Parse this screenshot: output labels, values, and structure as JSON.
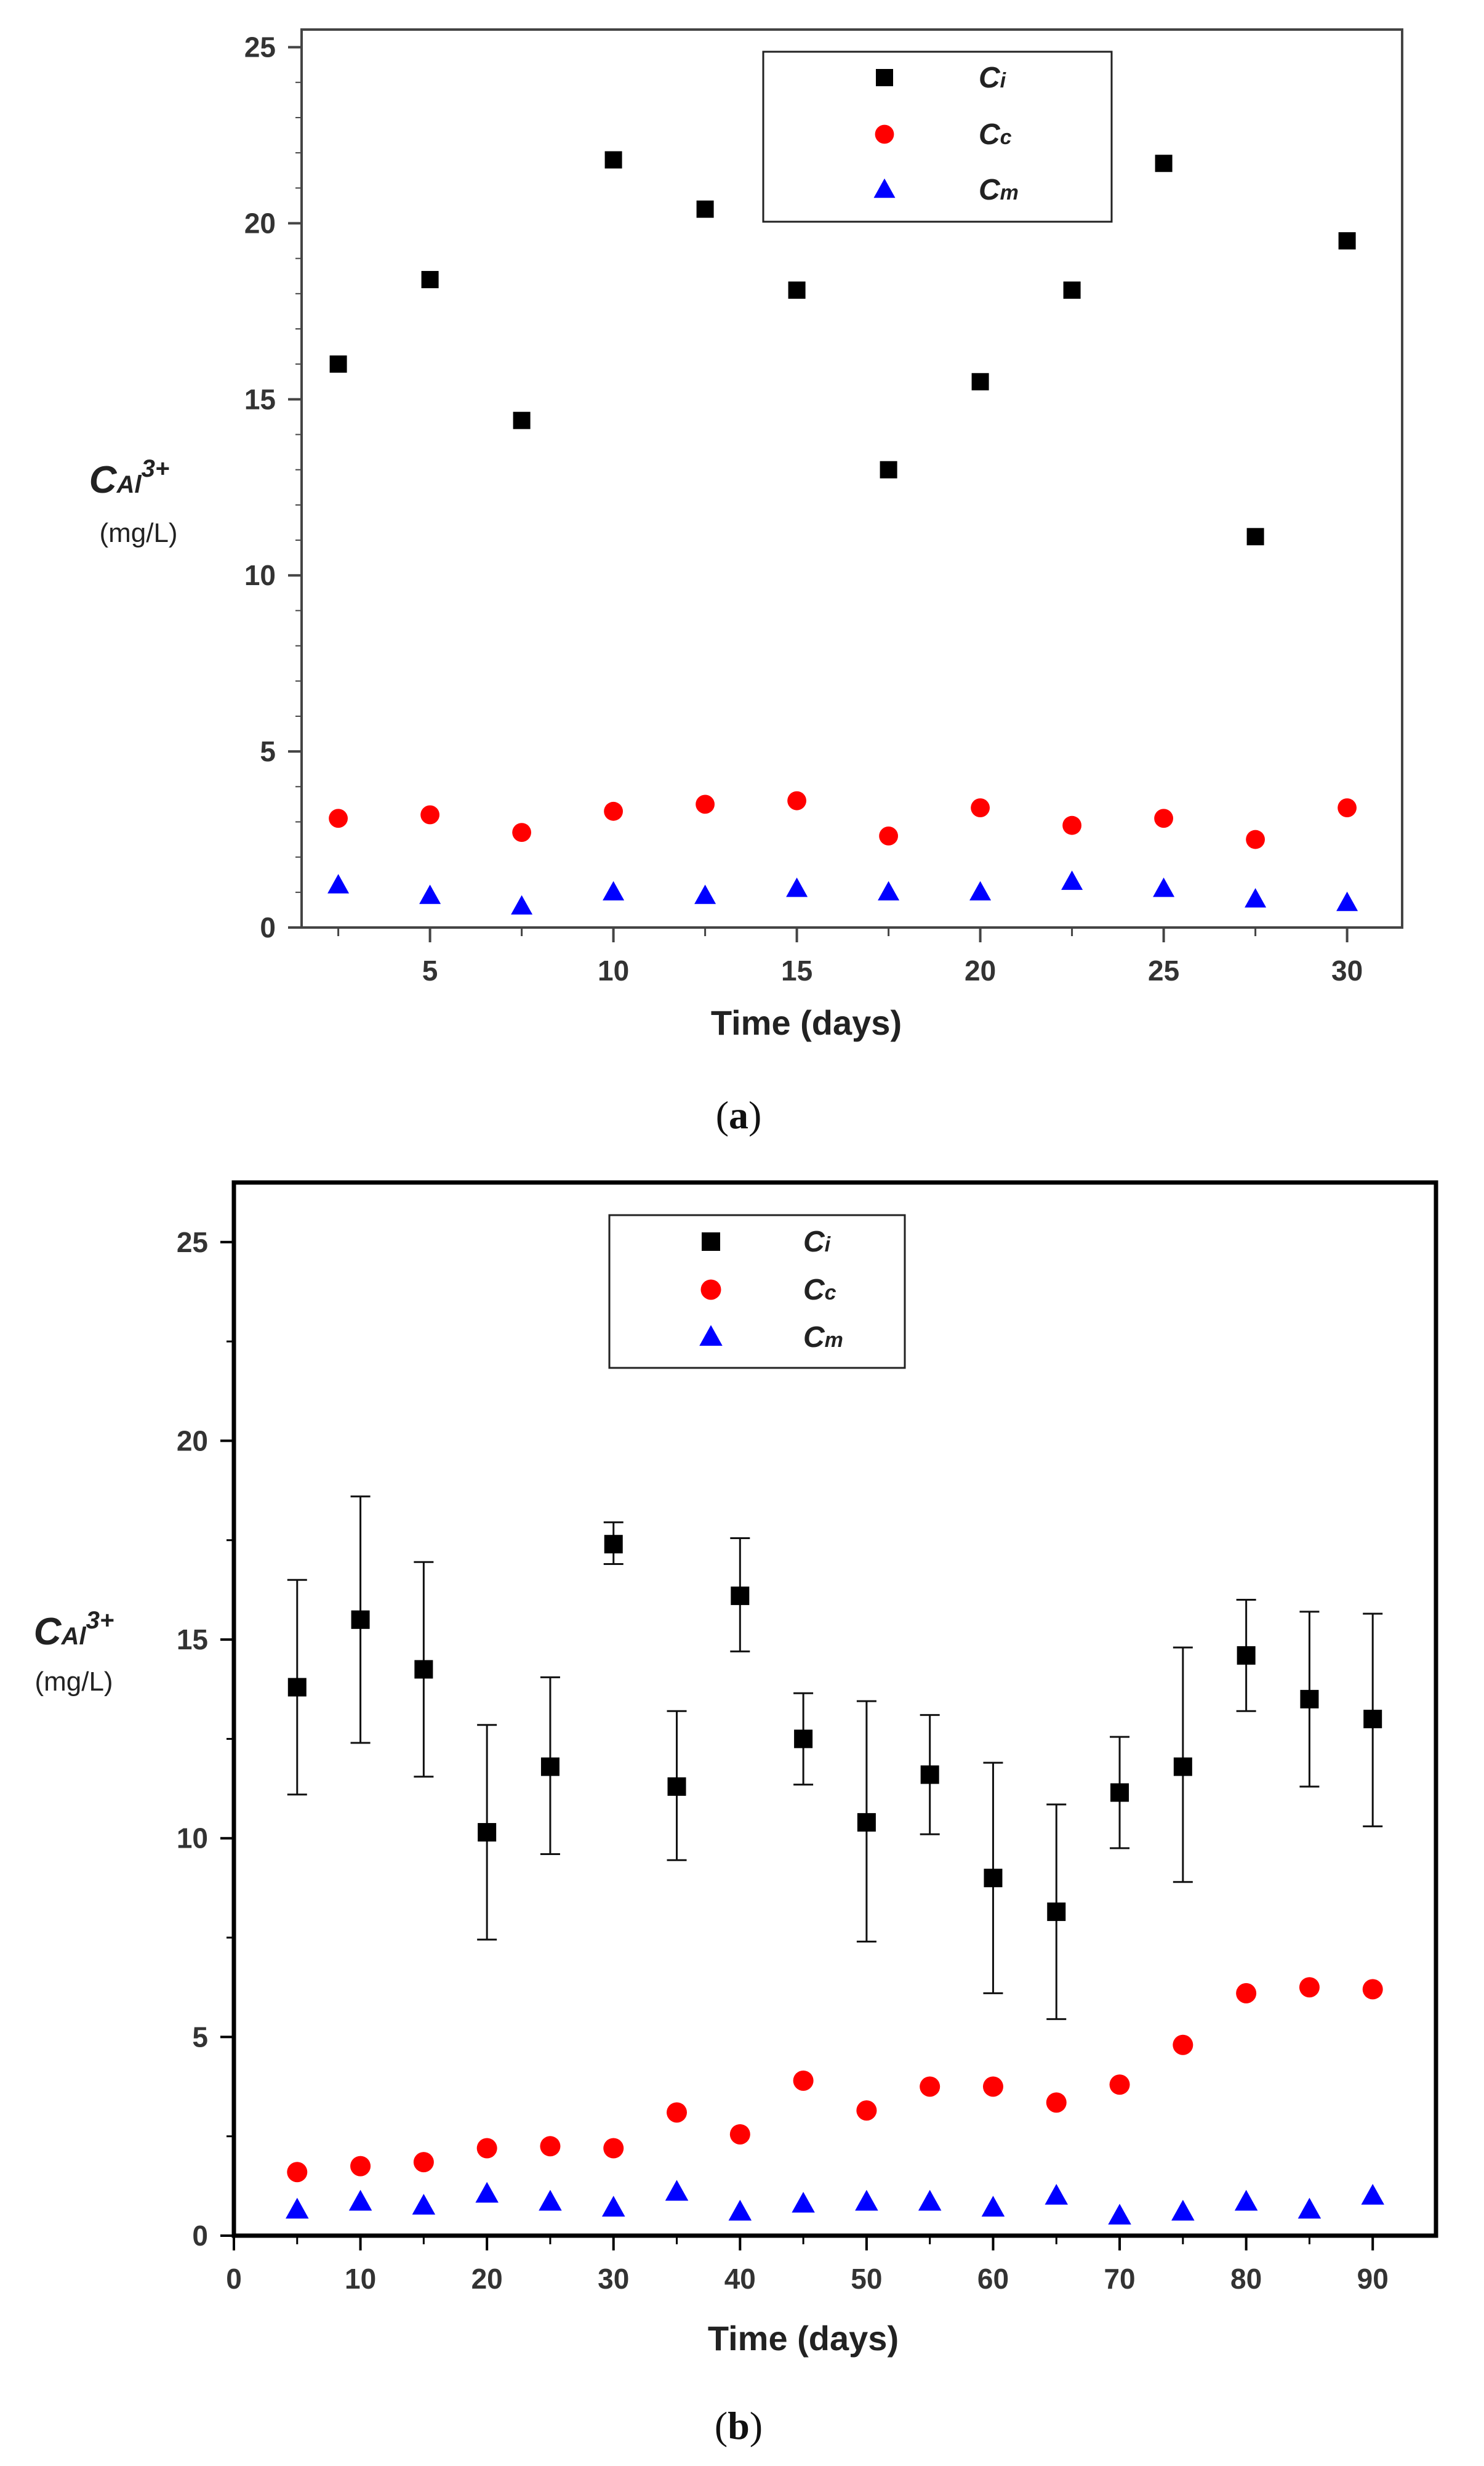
{
  "chart_data": [
    {
      "type": "scatter",
      "panel": "a",
      "caption_open": "(",
      "caption_letter": "a",
      "caption_close": ")",
      "xlabel": "Time (days)",
      "ylabel_main": "C",
      "ylabel_sub": "Al",
      "ylabel_sup": "3+",
      "ylabel_unit": "(mg/L)",
      "xlim": [
        1.5,
        31.5
      ],
      "ylim": [
        0,
        25.5
      ],
      "xticks": [
        5,
        10,
        15,
        20,
        25,
        30
      ],
      "xtick_minor": [
        2.5,
        7.5,
        12.5,
        17.5,
        22.5,
        27.5
      ],
      "yticks": [
        0,
        5,
        10,
        15,
        20,
        25
      ],
      "legend": {
        "placement": "top-right",
        "entries": [
          {
            "main": "C",
            "sub": "i"
          },
          {
            "main": "C",
            "sub": "c"
          },
          {
            "main": "C",
            "sub": "m"
          }
        ]
      },
      "series": [
        {
          "name": "Ci",
          "marker": "square",
          "color": "#000000",
          "x": [
            2.5,
            5,
            7.5,
            10,
            12.5,
            15,
            17.5,
            20,
            22.5,
            25,
            27.5,
            30
          ],
          "y": [
            16.0,
            18.4,
            14.4,
            21.8,
            20.4,
            18.1,
            13.0,
            15.5,
            18.1,
            21.7,
            11.1,
            19.5
          ]
        },
        {
          "name": "Cc",
          "marker": "circle",
          "color": "#ff0000",
          "x": [
            2.5,
            5,
            7.5,
            10,
            12.5,
            15,
            17.5,
            20,
            22.5,
            25,
            27.5,
            30
          ],
          "y": [
            3.1,
            3.2,
            2.7,
            3.3,
            3.5,
            3.6,
            2.6,
            3.4,
            2.9,
            3.1,
            2.5,
            3.4
          ]
        },
        {
          "name": "Cm",
          "marker": "triangle",
          "color": "#0000ff",
          "x": [
            2.5,
            5,
            7.5,
            10,
            12.5,
            15,
            17.5,
            20,
            22.5,
            25,
            27.5,
            30
          ],
          "y": [
            1.2,
            0.9,
            0.6,
            1.0,
            0.9,
            1.1,
            1.0,
            1.0,
            1.3,
            1.1,
            0.8,
            0.7
          ]
        }
      ]
    },
    {
      "type": "scatter",
      "panel": "b",
      "caption_open": "(",
      "caption_letter": "b",
      "caption_close": ")",
      "xlabel": "Time (days)",
      "ylabel_main": "C",
      "ylabel_sub": "Al",
      "ylabel_sup": "3+",
      "ylabel_unit": "(mg/L)",
      "xlim": [
        0,
        95
      ],
      "ylim": [
        0,
        26.5
      ],
      "xticks": [
        0,
        10,
        20,
        30,
        40,
        50,
        60,
        70,
        80,
        90
      ],
      "xtick_minor": [
        5,
        15,
        25,
        35,
        45,
        55,
        65,
        75,
        85
      ],
      "yticks": [
        0,
        5,
        10,
        15,
        20,
        25
      ],
      "ytick_minor": [
        2.5,
        7.5,
        12.5,
        17.5,
        22.5
      ],
      "legend": {
        "placement": "top-center",
        "entries": [
          {
            "main": "C",
            "sub": "i"
          },
          {
            "main": "C",
            "sub": "c"
          },
          {
            "main": "C",
            "sub": "m"
          }
        ]
      },
      "series": [
        {
          "name": "Ci",
          "marker": "square",
          "color": "#000000",
          "x": [
            5,
            10,
            15,
            20,
            25,
            30,
            35,
            40,
            45,
            50,
            55,
            60,
            65,
            70,
            75,
            80,
            85,
            90
          ],
          "y": [
            13.8,
            15.5,
            14.25,
            10.15,
            11.8,
            17.4,
            11.3,
            16.1,
            12.5,
            10.4,
            11.6,
            9.0,
            8.15,
            11.15,
            11.8,
            14.6,
            13.5,
            13.0
          ],
          "err_low": [
            11.1,
            12.4,
            11.55,
            7.45,
            9.6,
            16.9,
            9.45,
            14.7,
            11.35,
            7.4,
            10.1,
            6.1,
            5.45,
            9.75,
            8.9,
            13.2,
            11.3,
            10.3
          ],
          "err_high": [
            16.5,
            18.6,
            16.95,
            12.85,
            14.05,
            17.95,
            13.2,
            17.55,
            13.65,
            13.45,
            13.1,
            11.9,
            10.85,
            12.55,
            14.8,
            16.0,
            15.7,
            15.65
          ]
        },
        {
          "name": "Cc",
          "marker": "circle",
          "color": "#ff0000",
          "x": [
            5,
            10,
            15,
            20,
            25,
            30,
            35,
            40,
            45,
            50,
            55,
            60,
            65,
            70,
            75,
            80,
            85,
            90
          ],
          "y": [
            1.6,
            1.75,
            1.85,
            2.2,
            2.25,
            2.2,
            3.1,
            2.55,
            3.9,
            3.15,
            3.75,
            3.75,
            3.35,
            3.8,
            4.8,
            6.1,
            6.25,
            6.2
          ]
        },
        {
          "name": "Cm",
          "marker": "triangle",
          "color": "#0000ff",
          "x": [
            5,
            10,
            15,
            20,
            25,
            30,
            35,
            40,
            45,
            50,
            55,
            60,
            65,
            70,
            75,
            80,
            85,
            90
          ],
          "y": [
            0.65,
            0.85,
            0.75,
            1.05,
            0.85,
            0.7,
            1.1,
            0.6,
            0.8,
            0.85,
            0.85,
            0.7,
            1.0,
            0.5,
            0.6,
            0.85,
            0.65,
            1.0
          ]
        }
      ]
    }
  ]
}
